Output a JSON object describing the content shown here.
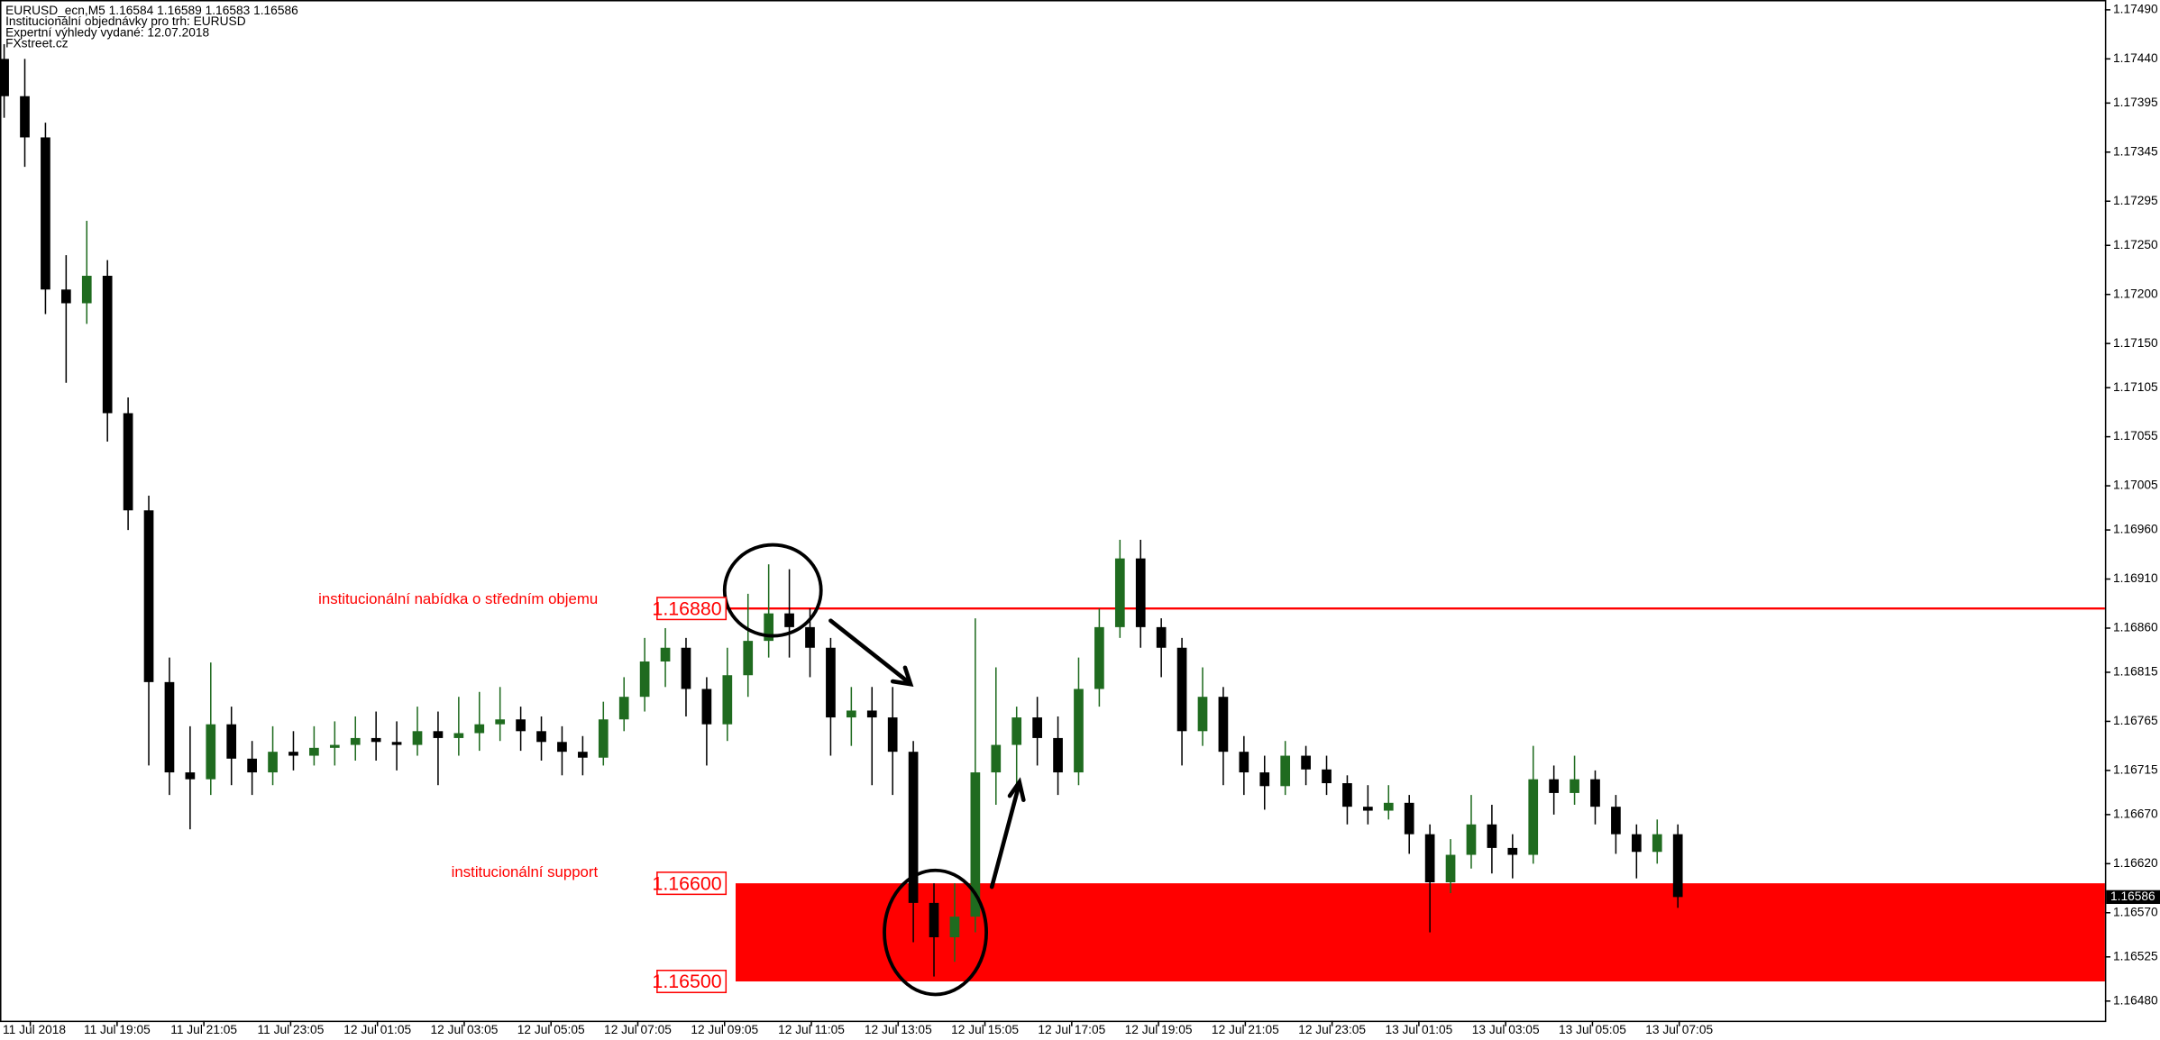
{
  "chart_data": {
    "type": "candlestick",
    "header": [
      "EURUSD_ecn,M5  1.16584 1.16589 1.16583 1.16586",
      "Institucionální objednávky pro trh: EURUSD",
      "Expertní výhledy vydané: 12.07.2018",
      "FXstreet.cz"
    ],
    "bull_color": "#1f6b1f",
    "bear_color": "#000000",
    "ylim": [
      1.1646,
      1.175
    ],
    "yticks": [
      {
        "value": 1.1749,
        "label": "1.17490"
      },
      {
        "value": 1.1744,
        "label": "1.17440"
      },
      {
        "value": 1.17395,
        "label": "1.17395"
      },
      {
        "value": 1.17345,
        "label": "1.17345"
      },
      {
        "value": 1.17295,
        "label": "1.17295"
      },
      {
        "value": 1.1725,
        "label": "1.17250"
      },
      {
        "value": 1.172,
        "label": "1.17200"
      },
      {
        "value": 1.1715,
        "label": "1.17150"
      },
      {
        "value": 1.17105,
        "label": "1.17105"
      },
      {
        "value": 1.17055,
        "label": "1.17055"
      },
      {
        "value": 1.17005,
        "label": "1.17005"
      },
      {
        "value": 1.1696,
        "label": "1.16960"
      },
      {
        "value": 1.1691,
        "label": "1.16910"
      },
      {
        "value": 1.1686,
        "label": "1.16860"
      },
      {
        "value": 1.16815,
        "label": "1.16815"
      },
      {
        "value": 1.16765,
        "label": "1.16765"
      },
      {
        "value": 1.16715,
        "label": "1.16715"
      },
      {
        "value": 1.1667,
        "label": "1.16670"
      },
      {
        "value": 1.1662,
        "label": "1.16620"
      },
      {
        "value": 1.1657,
        "label": "1.16570"
      },
      {
        "value": 1.16525,
        "label": "1.16525"
      },
      {
        "value": 1.1648,
        "label": "1.16480"
      }
    ],
    "xlabels": [
      "11 Jul 2018",
      "11 Jul 19:05",
      "11 Jul 21:05",
      "11 Jul 23:05",
      "12 Jul 01:05",
      "12 Jul 03:05",
      "12 Jul 05:05",
      "12 Jul 07:05",
      "12 Jul 09:05",
      "12 Jul 11:05",
      "12 Jul 13:05",
      "12 Jul 15:05",
      "12 Jul 17:05",
      "12 Jul 19:05",
      "12 Jul 21:05",
      "12 Jul 23:05",
      "13 Jul 01:05",
      "13 Jul 03:05",
      "13 Jul 05:05",
      "13 Jul 07:05"
    ],
    "levels": [
      {
        "value": 1.1688,
        "label": "1.16880",
        "color": "#ff0000"
      },
      {
        "value": 1.166,
        "label": "1.16600",
        "color": "#ff0000"
      },
      {
        "value": 1.165,
        "label": "1.16500",
        "color": "#ff0000"
      }
    ],
    "annotations": [
      "institucionální nabídka o středním objemu",
      "institucionální support"
    ],
    "last": {
      "value": 1.16586,
      "label": "1.16586"
    },
    "candles": [
      [
        1.1744,
        1.17455,
        1.1738,
        1.17402
      ],
      [
        1.17402,
        1.1744,
        1.1733,
        1.1736
      ],
      [
        1.1736,
        1.17375,
        1.1718,
        1.17205
      ],
      [
        1.17205,
        1.1724,
        1.1711,
        1.17191
      ],
      [
        1.17191,
        1.17275,
        1.1717,
        1.17219
      ],
      [
        1.17219,
        1.17235,
        1.1705,
        1.17079
      ],
      [
        1.17079,
        1.17095,
        1.1696,
        1.1698
      ],
      [
        1.1698,
        1.16995,
        1.1672,
        1.16805
      ],
      [
        1.16805,
        1.1683,
        1.1669,
        1.16713
      ],
      [
        1.16713,
        1.1676,
        1.16655,
        1.16706
      ],
      [
        1.16706,
        1.16825,
        1.1669,
        1.16762
      ],
      [
        1.16762,
        1.1678,
        1.167,
        1.16727
      ],
      [
        1.16727,
        1.16745,
        1.1669,
        1.16713
      ],
      [
        1.16713,
        1.1676,
        1.167,
        1.16734
      ],
      [
        1.16734,
        1.16755,
        1.16715,
        1.1673
      ],
      [
        1.1673,
        1.1676,
        1.1672,
        1.16738
      ],
      [
        1.16738,
        1.16765,
        1.1672,
        1.16741
      ],
      [
        1.16741,
        1.1677,
        1.16725,
        1.16748
      ],
      [
        1.16748,
        1.16775,
        1.16725,
        1.16744
      ],
      [
        1.16744,
        1.16765,
        1.16715,
        1.16741
      ],
      [
        1.16741,
        1.1678,
        1.1673,
        1.16755
      ],
      [
        1.16755,
        1.16775,
        1.167,
        1.16748
      ],
      [
        1.16748,
        1.1679,
        1.1673,
        1.16753
      ],
      [
        1.16753,
        1.16795,
        1.16735,
        1.16762
      ],
      [
        1.16762,
        1.168,
        1.16745,
        1.16767
      ],
      [
        1.16767,
        1.1678,
        1.16735,
        1.16755
      ],
      [
        1.16755,
        1.1677,
        1.16725,
        1.16744
      ],
      [
        1.16744,
        1.1676,
        1.1671,
        1.16734
      ],
      [
        1.16734,
        1.1675,
        1.1671,
        1.16728
      ],
      [
        1.16728,
        1.16785,
        1.1672,
        1.16767
      ],
      [
        1.16767,
        1.1681,
        1.16755,
        1.1679
      ],
      [
        1.1679,
        1.1685,
        1.16775,
        1.16826
      ],
      [
        1.16826,
        1.1686,
        1.168,
        1.1684
      ],
      [
        1.1684,
        1.1685,
        1.1677,
        1.16798
      ],
      [
        1.16798,
        1.1681,
        1.1672,
        1.16762
      ],
      [
        1.16762,
        1.1684,
        1.16745,
        1.16812
      ],
      [
        1.16812,
        1.16895,
        1.1679,
        1.16847
      ],
      [
        1.16847,
        1.16925,
        1.1683,
        1.16875
      ],
      [
        1.16875,
        1.1692,
        1.1683,
        1.16861
      ],
      [
        1.16861,
        1.1688,
        1.1681,
        1.1684
      ],
      [
        1.1684,
        1.1685,
        1.1673,
        1.16769
      ],
      [
        1.16769,
        1.168,
        1.1674,
        1.16776
      ],
      [
        1.16776,
        1.168,
        1.167,
        1.16769
      ],
      [
        1.16769,
        1.168,
        1.1669,
        1.16734
      ],
      [
        1.16734,
        1.16745,
        1.1654,
        1.1658
      ],
      [
        1.1658,
        1.166,
        1.16505,
        1.16545
      ],
      [
        1.16545,
        1.166,
        1.1652,
        1.16566
      ],
      [
        1.16566,
        1.1687,
        1.1655,
        1.16713
      ],
      [
        1.16713,
        1.1682,
        1.1668,
        1.16741
      ],
      [
        1.16741,
        1.1678,
        1.167,
        1.16769
      ],
      [
        1.16769,
        1.1679,
        1.1672,
        1.16748
      ],
      [
        1.16748,
        1.1677,
        1.1669,
        1.16713
      ],
      [
        1.16713,
        1.1683,
        1.167,
        1.16798
      ],
      [
        1.16798,
        1.1688,
        1.1678,
        1.16861
      ],
      [
        1.16861,
        1.1695,
        1.1685,
        1.16931
      ],
      [
        1.16931,
        1.1695,
        1.1684,
        1.16861
      ],
      [
        1.16861,
        1.1687,
        1.1681,
        1.1684
      ],
      [
        1.1684,
        1.1685,
        1.1672,
        1.16755
      ],
      [
        1.16755,
        1.1682,
        1.1674,
        1.1679
      ],
      [
        1.1679,
        1.168,
        1.167,
        1.16734
      ],
      [
        1.16734,
        1.1675,
        1.1669,
        1.16713
      ],
      [
        1.16713,
        1.1673,
        1.16675,
        1.16699
      ],
      [
        1.16699,
        1.16745,
        1.1669,
        1.1673
      ],
      [
        1.1673,
        1.1674,
        1.167,
        1.16716
      ],
      [
        1.16716,
        1.1673,
        1.1669,
        1.16702
      ],
      [
        1.16702,
        1.1671,
        1.1666,
        1.16678
      ],
      [
        1.16678,
        1.167,
        1.1666,
        1.16674
      ],
      [
        1.16674,
        1.167,
        1.16665,
        1.16682
      ],
      [
        1.16682,
        1.1669,
        1.1663,
        1.1665
      ],
      [
        1.1665,
        1.1666,
        1.1655,
        1.16601
      ],
      [
        1.16601,
        1.16645,
        1.1659,
        1.16629
      ],
      [
        1.16629,
        1.1669,
        1.16615,
        1.1666
      ],
      [
        1.1666,
        1.1668,
        1.1661,
        1.16636
      ],
      [
        1.16636,
        1.1665,
        1.16605,
        1.16629
      ],
      [
        1.16629,
        1.1674,
        1.1662,
        1.16706
      ],
      [
        1.16706,
        1.1672,
        1.1667,
        1.16692
      ],
      [
        1.16692,
        1.1673,
        1.1668,
        1.16706
      ],
      [
        1.16706,
        1.16715,
        1.1666,
        1.16678
      ],
      [
        1.16678,
        1.1669,
        1.1663,
        1.1665
      ],
      [
        1.1665,
        1.1666,
        1.16605,
        1.16632
      ],
      [
        1.16632,
        1.16665,
        1.1662,
        1.1665
      ],
      [
        1.1665,
        1.1666,
        1.16575,
        1.16586
      ]
    ]
  }
}
